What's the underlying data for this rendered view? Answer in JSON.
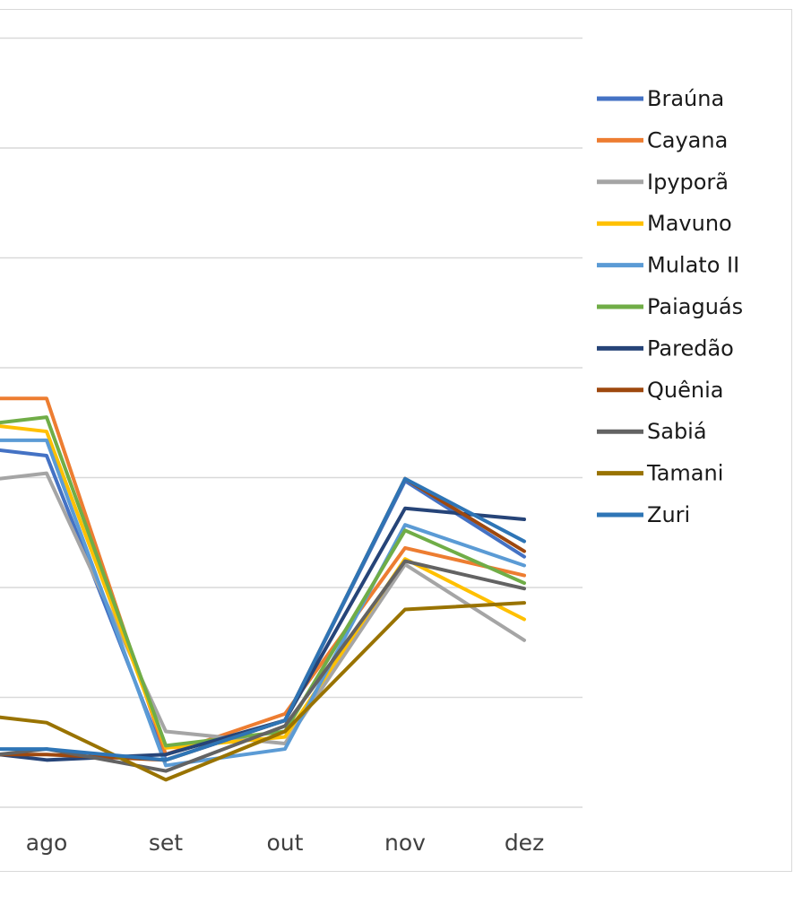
{
  "chart_data": {
    "type": "line",
    "categories": [
      "ago",
      "set",
      "out",
      "nov",
      "dez"
    ],
    "grid": true,
    "legend_position": "right",
    "series": [
      {
        "name": "Braúna",
        "color": "#4472c4",
        "values": [
          3.2,
          0.43,
          0.79,
          2.97,
          2.28
        ]
      },
      {
        "name": "Cayana",
        "color": "#ed7d31",
        "values": [
          3.72,
          0.48,
          0.85,
          2.36,
          2.11
        ]
      },
      {
        "name": "Ipyporã",
        "color": "#a5a5a5",
        "values": [
          3.04,
          0.69,
          0.58,
          2.21,
          1.52
        ]
      },
      {
        "name": "Mavuno",
        "color": "#ffc000",
        "values": [
          3.42,
          0.54,
          0.64,
          2.26,
          1.71
        ]
      },
      {
        "name": "Mulato II",
        "color": "#5b9bd5",
        "values": [
          3.34,
          0.38,
          0.53,
          2.57,
          2.2
        ]
      },
      {
        "name": "Paiaguás",
        "color": "#70ad47",
        "values": [
          3.55,
          0.56,
          0.69,
          2.52,
          2.04
        ]
      },
      {
        "name": "Paredão",
        "color": "#264478",
        "values": [
          0.43,
          0.48,
          0.79,
          2.72,
          2.62
        ]
      },
      {
        "name": "Quênia",
        "color": "#9e480e",
        "values": [
          0.48,
          0.43,
          0.79,
          2.99,
          2.33
        ]
      },
      {
        "name": "Sabiá",
        "color": "#636363",
        "values": [
          0.53,
          0.33,
          0.74,
          2.24,
          1.99
        ]
      },
      {
        "name": "Tamani",
        "color": "#997300",
        "values": [
          0.77,
          0.25,
          0.69,
          1.8,
          1.86
        ]
      },
      {
        "name": "Zuri",
        "color": "#2e75b6",
        "values": [
          0.53,
          0.43,
          0.79,
          2.99,
          2.42
        ]
      }
    ]
  }
}
